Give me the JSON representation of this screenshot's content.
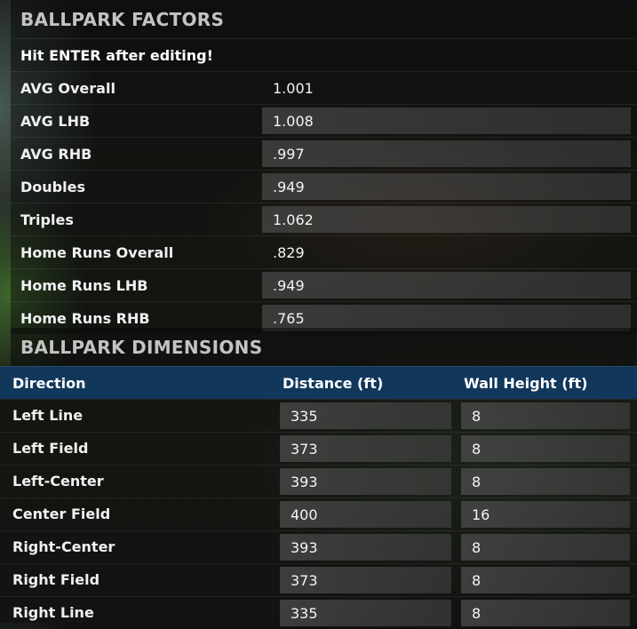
{
  "factors": {
    "title": "BALLPARK FACTORS",
    "note": "Hit ENTER after editing!",
    "rows": [
      {
        "label": "AVG Overall",
        "value": "1.001",
        "editable": false
      },
      {
        "label": "AVG LHB",
        "value": "1.008",
        "editable": true
      },
      {
        "label": "AVG RHB",
        "value": ".997",
        "editable": true
      },
      {
        "label": "Doubles",
        "value": ".949",
        "editable": true
      },
      {
        "label": "Triples",
        "value": "1.062",
        "editable": true
      },
      {
        "label": "Home Runs Overall",
        "value": ".829",
        "editable": false
      },
      {
        "label": "Home Runs LHB",
        "value": ".949",
        "editable": true
      },
      {
        "label": "Home Runs RHB",
        "value": ".765",
        "editable": true
      }
    ]
  },
  "dimensions": {
    "title": "BALLPARK DIMENSIONS",
    "columns": {
      "direction": "Direction",
      "distance": "Distance (ft)",
      "wall": "Wall Height (ft)"
    },
    "rows": [
      {
        "direction": "Left Line",
        "distance": "335",
        "wall": "8"
      },
      {
        "direction": "Left Field",
        "distance": "373",
        "wall": "8"
      },
      {
        "direction": "Left-Center",
        "distance": "393",
        "wall": "8"
      },
      {
        "direction": "Center Field",
        "distance": "400",
        "wall": "16"
      },
      {
        "direction": "Right-Center",
        "distance": "393",
        "wall": "8"
      },
      {
        "direction": "Right Field",
        "distance": "373",
        "wall": "8"
      },
      {
        "direction": "Right Line",
        "distance": "335",
        "wall": "8"
      }
    ]
  }
}
